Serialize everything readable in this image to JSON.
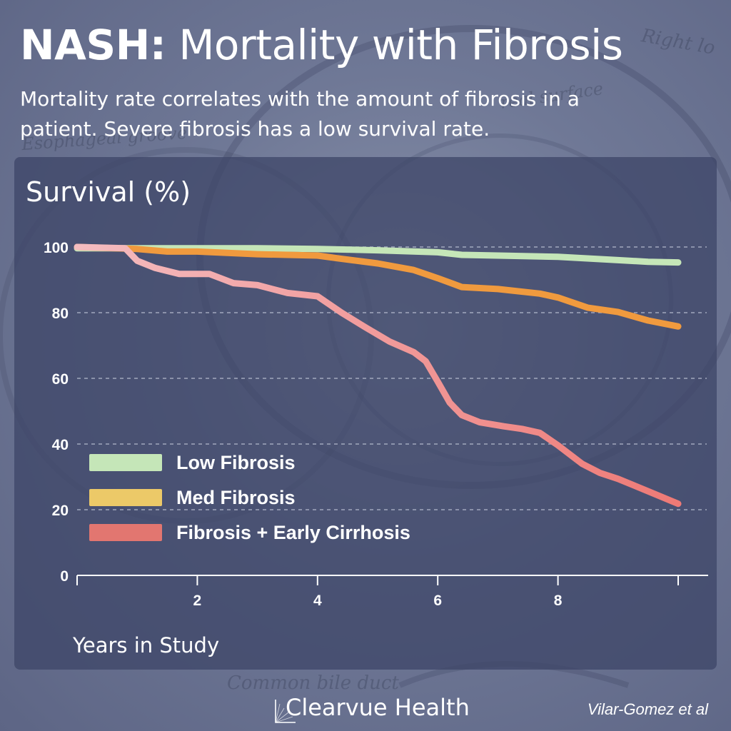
{
  "header": {
    "title_bold": "NASH:",
    "title_rest": " Mortality with Fibrosis",
    "subtitle": "Mortality rate correlates with the amount of fibrosis in a patient. Severe fibrosis has a low survival rate."
  },
  "footer": {
    "brand": "Clearvue Health",
    "credit": "Vilar-Gomez et al"
  },
  "colors": {
    "low": "#c5e6b8",
    "med": "#f09a3e",
    "high_start": "#f4bcc0",
    "high_end": "#ee7a76",
    "legend_low": "#c5e6b8",
    "legend_med": "#ecc968",
    "legend_high": "#e27670",
    "grid": "#b7bdd0",
    "axis": "#ffffff"
  },
  "chart_data": {
    "type": "line",
    "ylabel": "Survival (%)",
    "xlabel": "Years in Study",
    "xlim": [
      0,
      10
    ],
    "ylim": [
      0,
      100
    ],
    "x_ticks": [
      2,
      4,
      6,
      8
    ],
    "y_ticks": [
      0,
      20,
      40,
      60,
      80,
      100
    ],
    "grid": "horizontal dashed",
    "legend": "lower-left",
    "series": [
      {
        "name": "Low Fibrosis",
        "color_key": "low",
        "points": [
          [
            0,
            99.6
          ],
          [
            1,
            99.6
          ],
          [
            2,
            99.6
          ],
          [
            3,
            99.6
          ],
          [
            4,
            99.4
          ],
          [
            5,
            99.0
          ],
          [
            6,
            98.4
          ],
          [
            6.4,
            97.6
          ],
          [
            7,
            97.4
          ],
          [
            8,
            97.0
          ],
          [
            9,
            96.0
          ],
          [
            9.5,
            95.5
          ],
          [
            10,
            95.3
          ]
        ]
      },
      {
        "name": "Med Fibrosis",
        "color_key": "med",
        "points": [
          [
            0,
            100
          ],
          [
            1,
            99.4
          ],
          [
            1.5,
            98.6
          ],
          [
            2,
            98.6
          ],
          [
            3,
            97.8
          ],
          [
            4,
            97.4
          ],
          [
            4.4,
            96.4
          ],
          [
            5,
            95.0
          ],
          [
            5.6,
            93.0
          ],
          [
            6,
            90.5
          ],
          [
            6.4,
            87.8
          ],
          [
            7,
            87.2
          ],
          [
            7.7,
            85.8
          ],
          [
            8,
            84.6
          ],
          [
            8.5,
            81.5
          ],
          [
            9,
            80.2
          ],
          [
            9.5,
            77.6
          ],
          [
            10,
            75.8
          ]
        ]
      },
      {
        "name": "Fibrosis + Early Cirrhosis",
        "color_key": "high",
        "points": [
          [
            0,
            100
          ],
          [
            0.8,
            99.6
          ],
          [
            1,
            95.8
          ],
          [
            1.3,
            93.6
          ],
          [
            1.7,
            91.8
          ],
          [
            2.2,
            91.8
          ],
          [
            2.6,
            89.0
          ],
          [
            3,
            88.4
          ],
          [
            3.5,
            86.0
          ],
          [
            4,
            85.0
          ],
          [
            4.4,
            80.0
          ],
          [
            4.8,
            75.5
          ],
          [
            5.2,
            71.2
          ],
          [
            5.6,
            68.0
          ],
          [
            5.8,
            65.2
          ],
          [
            6,
            59.0
          ],
          [
            6.2,
            52.6
          ],
          [
            6.4,
            48.8
          ],
          [
            6.7,
            46.6
          ],
          [
            7.1,
            45.4
          ],
          [
            7.4,
            44.6
          ],
          [
            7.7,
            43.4
          ],
          [
            8,
            39.6
          ],
          [
            8.4,
            34.0
          ],
          [
            8.7,
            31.2
          ],
          [
            9,
            29.4
          ],
          [
            9.5,
            25.6
          ],
          [
            10,
            21.8
          ]
        ]
      }
    ]
  }
}
